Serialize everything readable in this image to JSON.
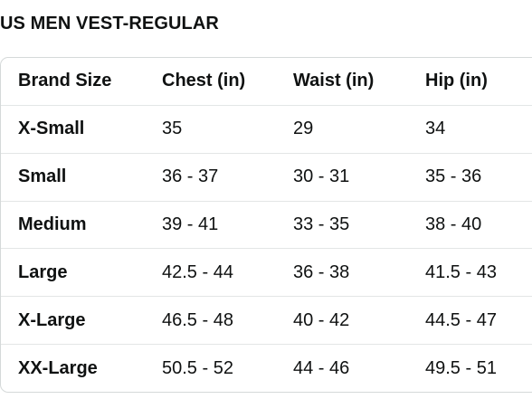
{
  "title": "US MEN VEST-REGULAR",
  "table": {
    "headers": [
      "Brand Size",
      "Chest (in)",
      "Waist (in)",
      "Hip (in)"
    ],
    "rows": [
      [
        "X-Small",
        "35",
        "29",
        "34"
      ],
      [
        "Small",
        "36 - 37",
        "30 - 31",
        "35 - 36"
      ],
      [
        "Medium",
        "39 - 41",
        "33 - 35",
        "38 - 40"
      ],
      [
        "Large",
        "42.5 - 44",
        "36 - 38",
        "41.5 - 43"
      ],
      [
        "X-Large",
        "46.5 - 48",
        "40 - 42",
        "44.5 - 47"
      ],
      [
        "XX-Large",
        "50.5 - 52",
        "44 - 46",
        "49.5 - 51"
      ]
    ]
  }
}
